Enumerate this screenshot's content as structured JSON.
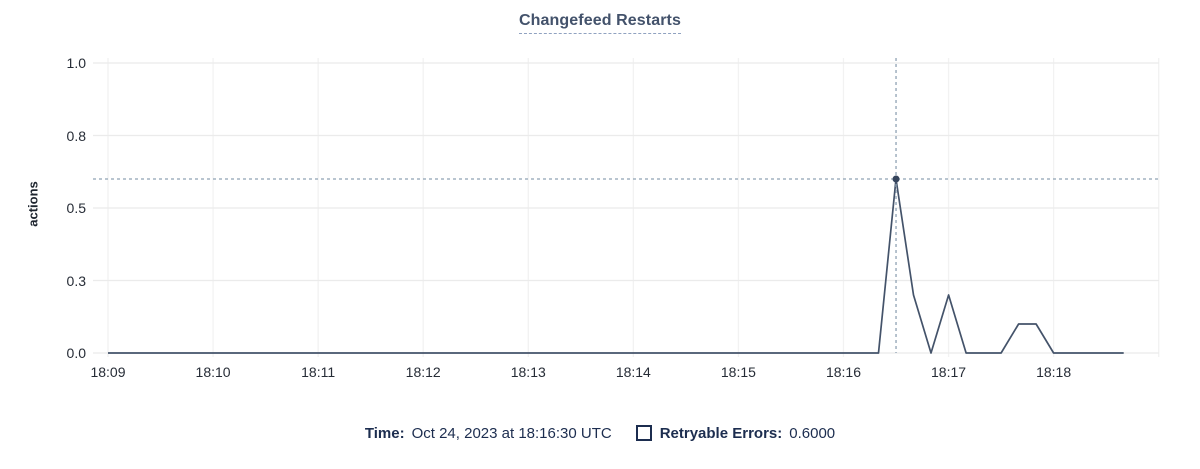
{
  "title": "Changefeed Restarts",
  "legend": {
    "time_label": "Time:",
    "time_value": "Oct 24, 2023 at 18:16:30 UTC",
    "series_label": "Retryable Errors:",
    "series_value": "0.6000",
    "swatch_color": "#1c2d4f"
  },
  "chart_data": {
    "type": "line",
    "title": "Changefeed Restarts",
    "xlabel": "",
    "ylabel": "actions",
    "ylim": [
      0,
      1
    ],
    "grid": true,
    "x_start": "18:09:00",
    "x_end": "18:18:40",
    "sample_interval_seconds": 10,
    "y_tick_positions": [
      0,
      0.25,
      0.5,
      0.75,
      1.0
    ],
    "y_tick_labels": [
      "0.0",
      "0.3",
      "0.5",
      "0.8",
      "1.0"
    ],
    "x_tick_minutes": [
      0,
      1,
      2,
      3,
      4,
      5,
      6,
      7,
      8,
      9
    ],
    "x_tick_labels": [
      "18:09",
      "18:10",
      "18:11",
      "18:12",
      "18:13",
      "18:14",
      "18:15",
      "18:16",
      "18:17",
      "18:18"
    ],
    "series": [
      {
        "name": "Retryable Errors",
        "color": "#44536a",
        "values": [
          0,
          0,
          0,
          0,
          0,
          0,
          0,
          0,
          0,
          0,
          0,
          0,
          0,
          0,
          0,
          0,
          0,
          0,
          0,
          0,
          0,
          0,
          0,
          0,
          0,
          0,
          0,
          0,
          0,
          0,
          0,
          0,
          0,
          0,
          0,
          0,
          0,
          0,
          0,
          0,
          0,
          0,
          0,
          0,
          0,
          0.6,
          0.2,
          0,
          0.2,
          0,
          0,
          0,
          0.1,
          0.1,
          0,
          0,
          0,
          0,
          0
        ]
      }
    ],
    "crosshair": {
      "time": "18:16:30",
      "minutes_from_start": 7.5,
      "value": 0.6
    },
    "colors": {
      "line": "#44536a",
      "dot": "#35445c",
      "crosshair": "#8fa2b3",
      "grid_h": "#ebebeb",
      "grid_v": "#f2f2f2"
    }
  }
}
